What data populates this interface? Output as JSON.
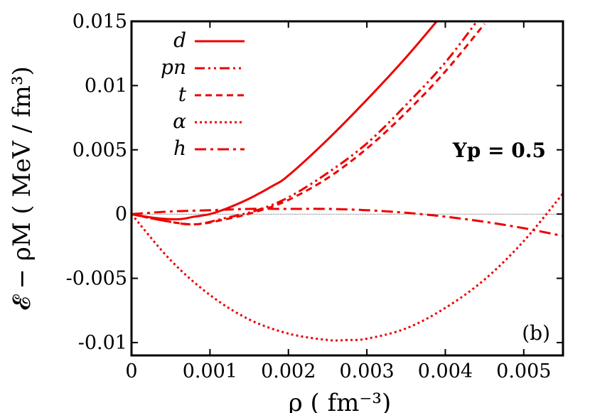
{
  "chart_data": {
    "type": "line",
    "xlabel": "ρ ( fm⁻³)",
    "ylabel": "𝓔 − ρM ( MeV / fm³)",
    "xlim": [
      0,
      0.0055
    ],
    "ylim": [
      -0.011,
      0.015
    ],
    "x_ticks": [
      {
        "value": 0,
        "label": "0"
      },
      {
        "value": 0.001,
        "label": "0.001"
      },
      {
        "value": 0.002,
        "label": "0.002"
      },
      {
        "value": 0.003,
        "label": "0.003"
      },
      {
        "value": 0.004,
        "label": "0.004"
      },
      {
        "value": 0.005,
        "label": "0.005"
      }
    ],
    "y_ticks": [
      {
        "value": -0.01,
        "label": "-0.01"
      },
      {
        "value": -0.005,
        "label": "-0.005"
      },
      {
        "value": 0,
        "label": "0"
      },
      {
        "value": 0.005,
        "label": "0.005"
      },
      {
        "value": 0.01,
        "label": "0.01"
      },
      {
        "value": 0.015,
        "label": "0.015"
      }
    ],
    "zero_line": true,
    "legend_position": "top-left",
    "annotation": "Yp = 0.5",
    "panel_label": "(b)",
    "line_color": "#ee0000",
    "series": [
      {
        "name": "d",
        "dash": "solid",
        "x": [
          0,
          0.0003,
          0.0006,
          0.0008,
          0.001,
          0.0012,
          0.0015,
          0.0018,
          0.002,
          0.0025,
          0.003,
          0.0035,
          0.004,
          0.0042
        ],
        "y": [
          0,
          -0.0003,
          -0.0004,
          -0.0002,
          0,
          0.0004,
          0.0012,
          0.0022,
          0.003,
          0.0058,
          0.0089,
          0.0122,
          0.0158,
          0.0173
        ]
      },
      {
        "name": "pn",
        "dash": "dash-dot-dot",
        "x": [
          0,
          0.0004,
          0.0008,
          0.0012,
          0.0016,
          0.002,
          0.0025,
          0.003,
          0.0035,
          0.004,
          0.0045
        ],
        "y": [
          0,
          -0.0005,
          -0.0008,
          -0.0003,
          0.0003,
          0.0013,
          0.0032,
          0.0055,
          0.0085,
          0.0118,
          0.0158
        ]
      },
      {
        "name": "t",
        "dash": "dashed",
        "x": [
          0,
          0.0004,
          0.0008,
          0.0012,
          0.0016,
          0.002,
          0.0025,
          0.003,
          0.0035,
          0.004,
          0.0045
        ],
        "y": [
          0,
          -0.0005,
          -0.0008,
          -0.0004,
          0.0002,
          0.0011,
          0.0028,
          0.0051,
          0.0079,
          0.0111,
          0.0148
        ]
      },
      {
        "name": "α",
        "dash": "dotted",
        "x": [
          0,
          0.0005,
          0.001,
          0.0015,
          0.002,
          0.0025,
          0.00275,
          0.003,
          0.0035,
          0.004,
          0.0045,
          0.005,
          0.0055
        ],
        "y": [
          0,
          -0.0036,
          -0.0063,
          -0.0082,
          -0.0093,
          -0.0098,
          -0.0098,
          -0.0097,
          -0.0089,
          -0.0073,
          -0.0051,
          -0.0021,
          0.0016
        ]
      },
      {
        "name": "h",
        "dash": "dash-dot",
        "x": [
          0,
          0.0005,
          0.001,
          0.0015,
          0.002,
          0.0025,
          0.003,
          0.0035,
          0.004,
          0.0045,
          0.005,
          0.0055
        ],
        "y": [
          0,
          0.0002,
          0.0003,
          0.0004,
          0.0004,
          0.0004,
          0.0003,
          0.0001,
          -0.0002,
          -0.0006,
          -0.0011,
          -0.0017
        ]
      }
    ]
  }
}
